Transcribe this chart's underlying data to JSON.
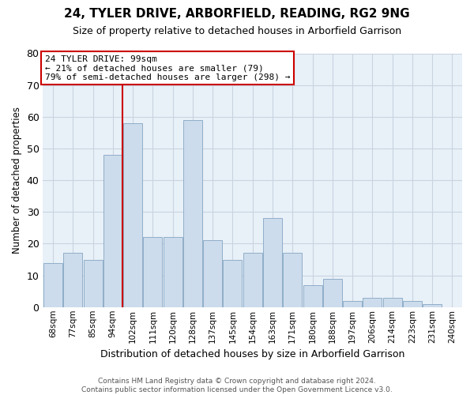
{
  "title": "24, TYLER DRIVE, ARBORFIELD, READING, RG2 9NG",
  "subtitle": "Size of property relative to detached houses in Arborfield Garrison",
  "xlabel": "Distribution of detached houses by size in Arborfield Garrison",
  "ylabel": "Number of detached properties",
  "bar_color": "#ccdcec",
  "bar_edge_color": "#90aec8",
  "categories": [
    "68sqm",
    "77sqm",
    "85sqm",
    "94sqm",
    "102sqm",
    "111sqm",
    "120sqm",
    "128sqm",
    "137sqm",
    "145sqm",
    "154sqm",
    "163sqm",
    "171sqm",
    "180sqm",
    "188sqm",
    "197sqm",
    "206sqm",
    "214sqm",
    "223sqm",
    "231sqm",
    "240sqm"
  ],
  "values": [
    14,
    17,
    15,
    48,
    58,
    22,
    22,
    59,
    21,
    15,
    17,
    28,
    17,
    7,
    9,
    2,
    3,
    3,
    2,
    1,
    0
  ],
  "vline_color": "#cc0000",
  "annotation_text": "24 TYLER DRIVE: 99sqm\n← 21% of detached houses are smaller (79)\n79% of semi-detached houses are larger (298) →",
  "annotation_box_color": "#ffffff",
  "annotation_box_edge": "#cc0000",
  "ylim": [
    0,
    80
  ],
  "yticks": [
    0,
    10,
    20,
    30,
    40,
    50,
    60,
    70,
    80
  ],
  "footer": "Contains HM Land Registry data © Crown copyright and database right 2024.\nContains public sector information licensed under the Open Government Licence v3.0.",
  "bg_color": "#ffffff",
  "plot_bg_color": "#e8f0f8",
  "grid_color": "#c8d4e0"
}
